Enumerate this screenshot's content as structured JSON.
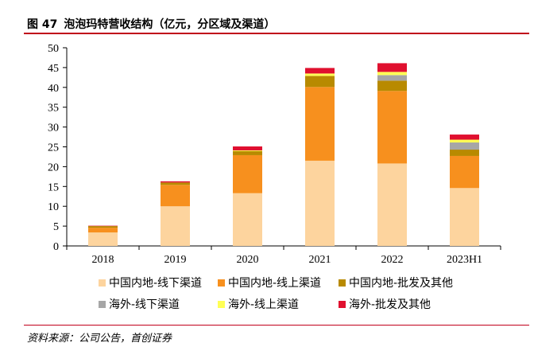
{
  "figure": {
    "label": "图 47",
    "title": "泡泡玛特营收结构（亿元，分区域及渠道）",
    "source": "资料来源：公司公告，首创证券"
  },
  "chart_data": {
    "type": "bar",
    "stacked": true,
    "categories": [
      "2018",
      "2019",
      "2020",
      "2021",
      "2022",
      "2023H1"
    ],
    "ylim": [
      0,
      50
    ],
    "yticks": [
      0,
      5,
      10,
      15,
      20,
      25,
      30,
      35,
      40,
      45,
      50
    ],
    "grid": false,
    "legend_position": "bottom",
    "series": [
      {
        "name": "中国内地-线下渠道",
        "color": "#fdd49e",
        "values": [
          3.4,
          10.0,
          13.3,
          21.5,
          20.8,
          14.6
        ]
      },
      {
        "name": "中国内地-线上渠道",
        "color": "#f7901e",
        "values": [
          1.2,
          5.4,
          9.6,
          18.6,
          18.3,
          8.1
        ]
      },
      {
        "name": "中国内地-批发及其他",
        "color": "#b88a00",
        "values": [
          0.4,
          0.6,
          1.0,
          2.8,
          2.6,
          1.6
        ]
      },
      {
        "name": "海外-线下渠道",
        "color": "#a6a6a6",
        "values": [
          0.0,
          0.0,
          0.0,
          0.0,
          1.4,
          1.8
        ]
      },
      {
        "name": "海外-线上渠道",
        "color": "#ffff55",
        "values": [
          0.0,
          0.0,
          0.2,
          0.6,
          0.8,
          0.7
        ]
      },
      {
        "name": "海外-批发及其他",
        "color": "#e0102f",
        "values": [
          0.1,
          0.3,
          1.0,
          1.4,
          2.2,
          1.3
        ]
      }
    ]
  }
}
